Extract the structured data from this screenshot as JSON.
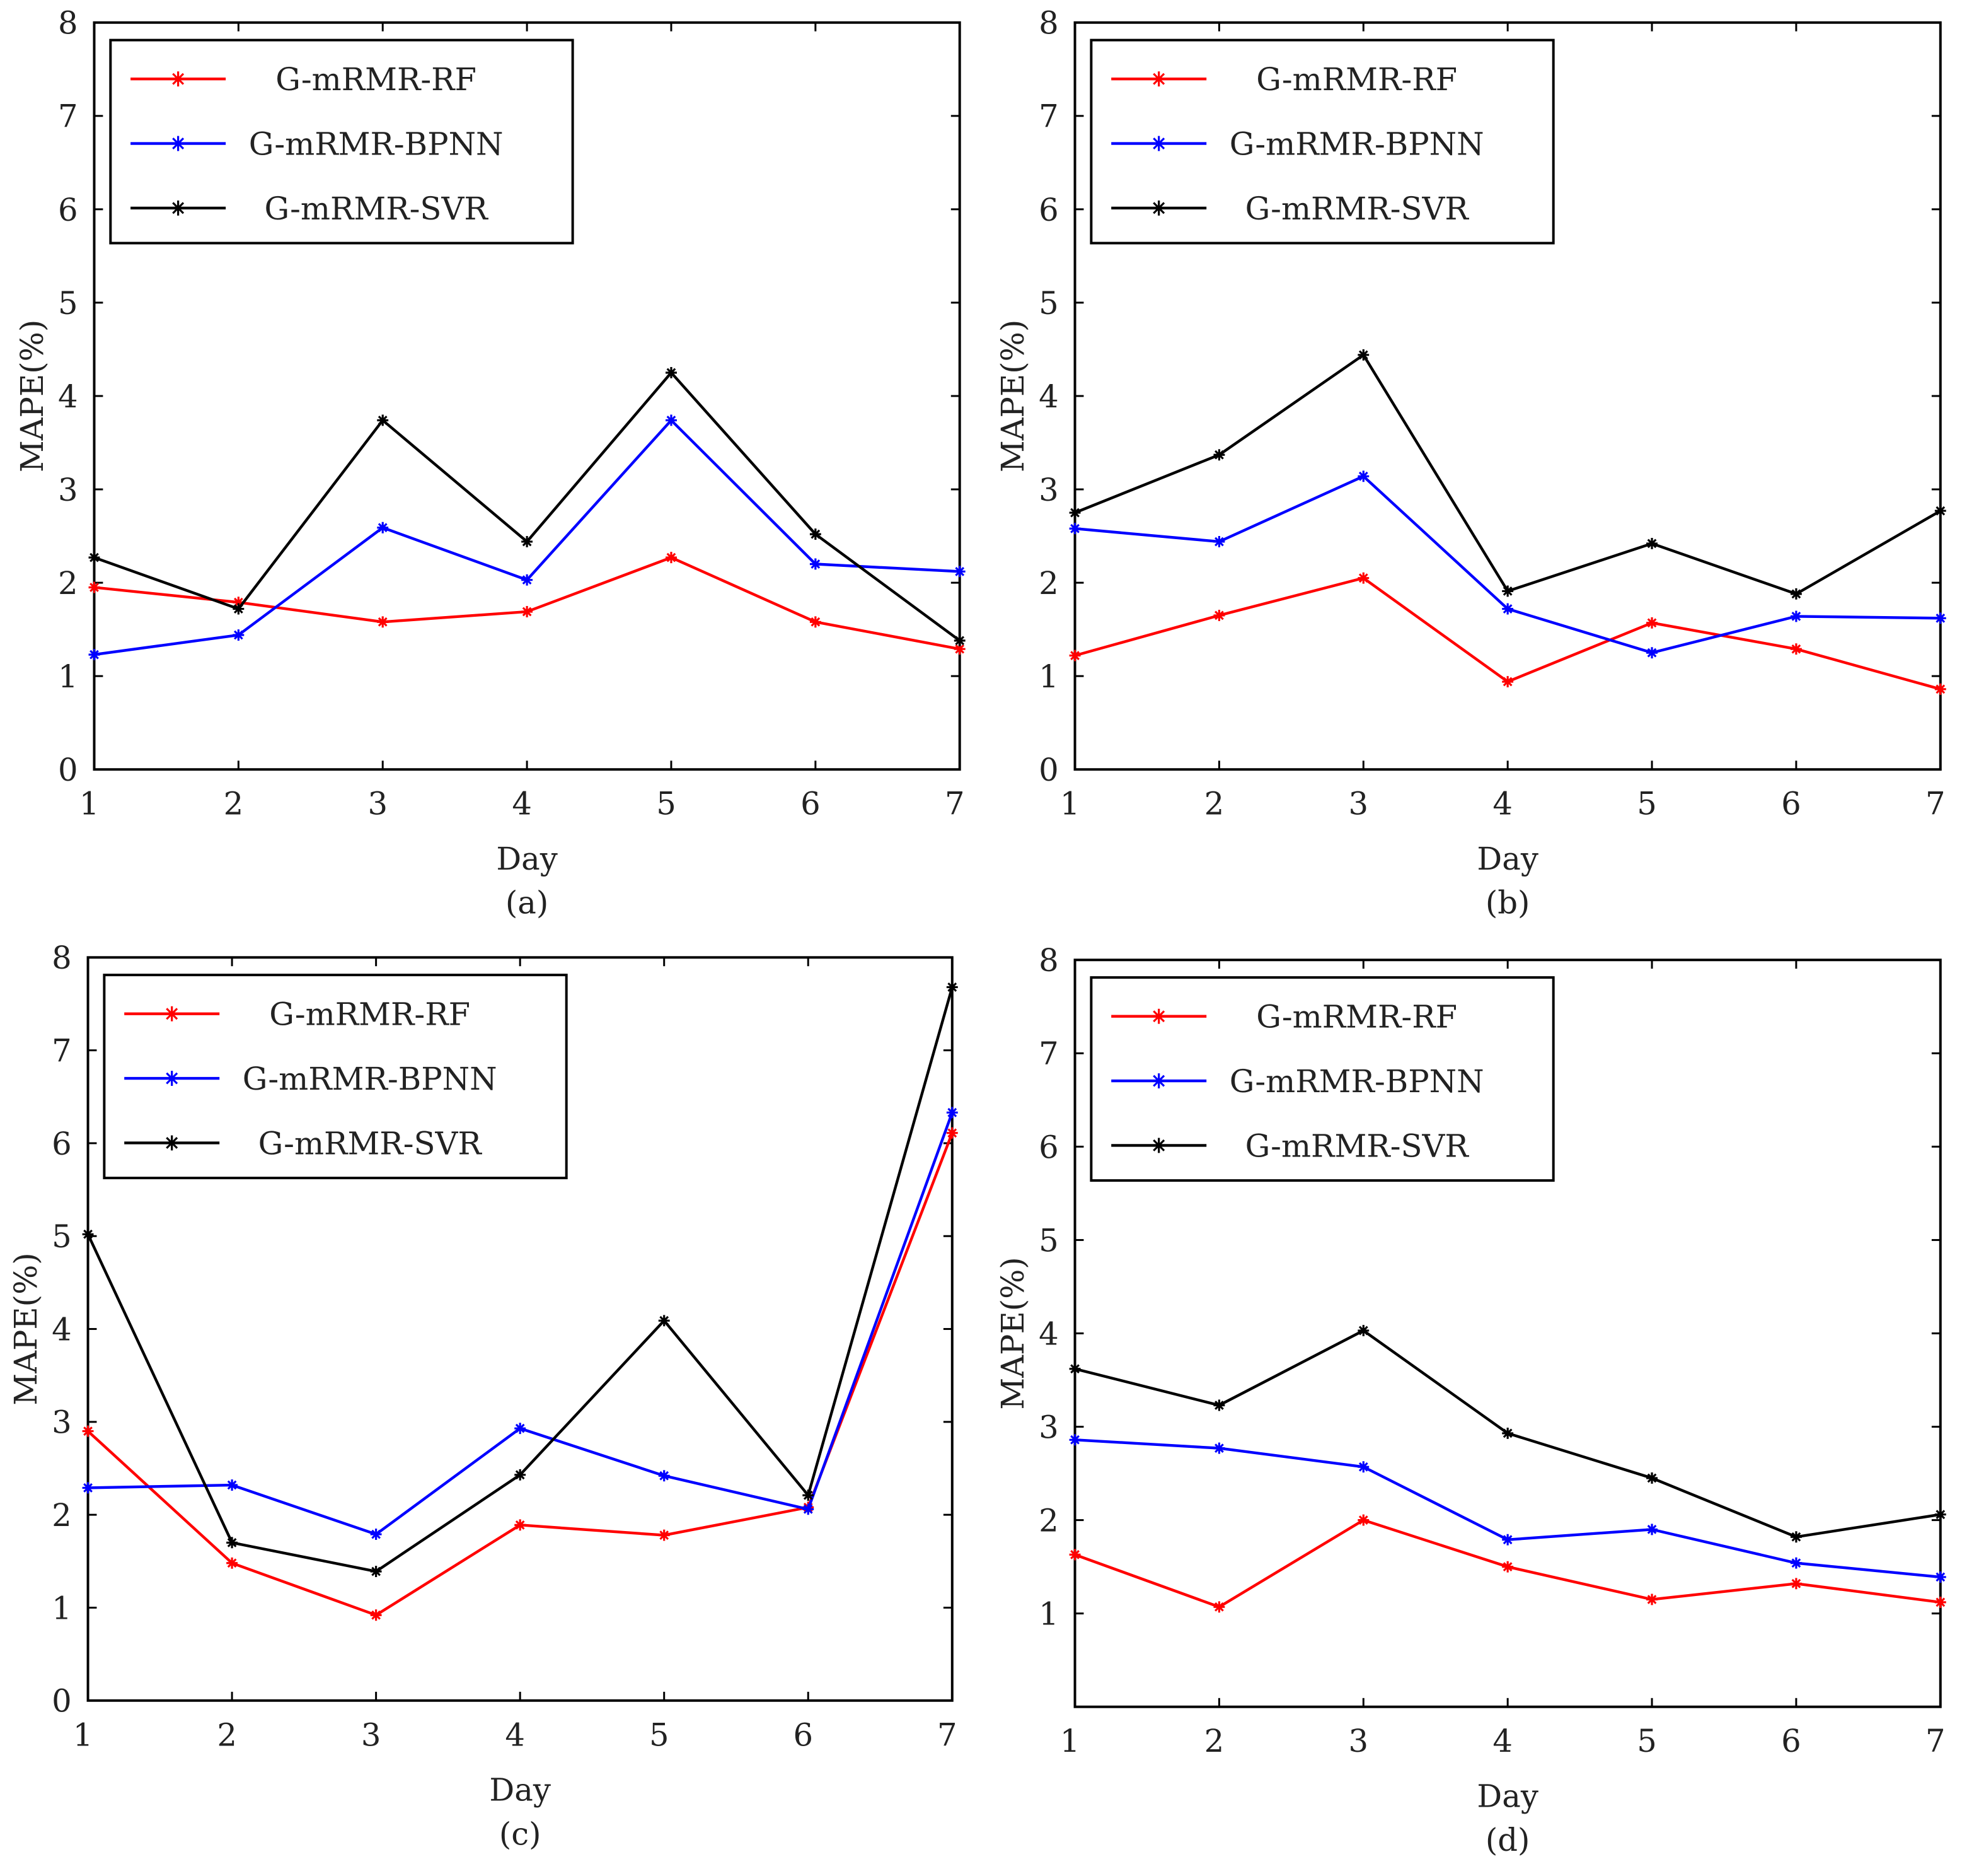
{
  "chart_data": [
    {
      "type": "line",
      "panel_label": "(a)",
      "xlabel": "Day",
      "ylabel": "MAPE(%)",
      "x": [
        1,
        2,
        3,
        4,
        5,
        6,
        7
      ],
      "xticks": [
        "1",
        "2",
        "3",
        "4",
        "5",
        "6",
        "7"
      ],
      "ylim": [
        0,
        8
      ],
      "yticks": [
        "0",
        "1",
        "2",
        "3",
        "4",
        "5",
        "6",
        "7",
        "8"
      ],
      "grid": false,
      "legend": "top-left",
      "series": [
        {
          "name": "G-mRMR-RF",
          "color": "#ff0000",
          "values": [
            1.95,
            1.79,
            1.58,
            1.69,
            2.27,
            1.58,
            1.29
          ]
        },
        {
          "name": "G-mRMR-BPNN",
          "color": "#0000ff",
          "values": [
            1.23,
            1.44,
            2.59,
            2.03,
            3.74,
            2.2,
            2.12
          ]
        },
        {
          "name": "G-mRMR-SVR",
          "color": "#000000",
          "values": [
            2.27,
            1.72,
            3.74,
            2.44,
            4.25,
            2.52,
            1.38
          ]
        }
      ]
    },
    {
      "type": "line",
      "panel_label": "(b)",
      "xlabel": "Day",
      "ylabel": "MAPE(%)",
      "x": [
        1,
        2,
        3,
        4,
        5,
        6,
        7
      ],
      "xticks": [
        "1",
        "2",
        "3",
        "4",
        "5",
        "6",
        "7"
      ],
      "ylim": [
        0,
        8
      ],
      "yticks": [
        "0",
        "1",
        "2",
        "3",
        "4",
        "5",
        "6",
        "7",
        "8"
      ],
      "grid": false,
      "legend": "top-left",
      "series": [
        {
          "name": "G-mRMR-RF",
          "color": "#ff0000",
          "values": [
            1.22,
            1.65,
            2.05,
            0.94,
            1.57,
            1.29,
            0.86
          ]
        },
        {
          "name": "G-mRMR-BPNN",
          "color": "#0000ff",
          "values": [
            2.58,
            2.44,
            3.14,
            1.72,
            1.25,
            1.64,
            1.62
          ]
        },
        {
          "name": "G-mRMR-SVR",
          "color": "#000000",
          "values": [
            2.75,
            3.37,
            4.44,
            1.91,
            2.42,
            1.88,
            2.77
          ]
        }
      ]
    },
    {
      "type": "line",
      "panel_label": "(c)",
      "xlabel": "Day",
      "ylabel": "MAPE(%)",
      "x": [
        1,
        2,
        3,
        4,
        5,
        6,
        7
      ],
      "xticks": [
        "1",
        "2",
        "3",
        "4",
        "5",
        "6",
        "7"
      ],
      "ylim": [
        0,
        8
      ],
      "yticks": [
        "0",
        "1",
        "2",
        "3",
        "4",
        "5",
        "6",
        "7",
        "8"
      ],
      "grid": false,
      "legend": "top-left",
      "series": [
        {
          "name": "G-mRMR-RF",
          "color": "#ff0000",
          "values": [
            2.9,
            1.48,
            0.92,
            1.89,
            1.78,
            2.08,
            6.11
          ]
        },
        {
          "name": "G-mRMR-BPNN",
          "color": "#0000ff",
          "values": [
            2.29,
            2.32,
            1.79,
            2.93,
            2.42,
            2.06,
            6.33
          ]
        },
        {
          "name": "G-mRMR-SVR",
          "color": "#000000",
          "values": [
            5.02,
            1.7,
            1.39,
            2.43,
            4.09,
            2.21,
            7.68
          ]
        }
      ]
    },
    {
      "type": "line",
      "panel_label": "(d)",
      "xlabel": "Day",
      "ylabel": "MAPE(%)",
      "x": [
        1,
        2,
        3,
        4,
        5,
        6,
        7
      ],
      "xticks": [
        "1",
        "2",
        "3",
        "4",
        "5",
        "6",
        "7"
      ],
      "ylim": [
        0,
        8
      ],
      "yticks": [
        "",
        "1",
        "2",
        "3",
        "4",
        "5",
        "6",
        "7",
        "8"
      ],
      "grid": false,
      "legend": "top-left",
      "series": [
        {
          "name": "G-mRMR-RF",
          "color": "#ff0000",
          "values": [
            1.63,
            1.07,
            2.0,
            1.5,
            1.15,
            1.32,
            1.12
          ]
        },
        {
          "name": "G-mRMR-BPNN",
          "color": "#0000ff",
          "values": [
            2.86,
            2.77,
            2.57,
            1.79,
            1.9,
            1.54,
            1.39
          ]
        },
        {
          "name": "G-mRMR-SVR",
          "color": "#000000",
          "values": [
            3.62,
            3.23,
            4.03,
            2.93,
            2.45,
            1.82,
            2.06
          ]
        }
      ]
    }
  ]
}
